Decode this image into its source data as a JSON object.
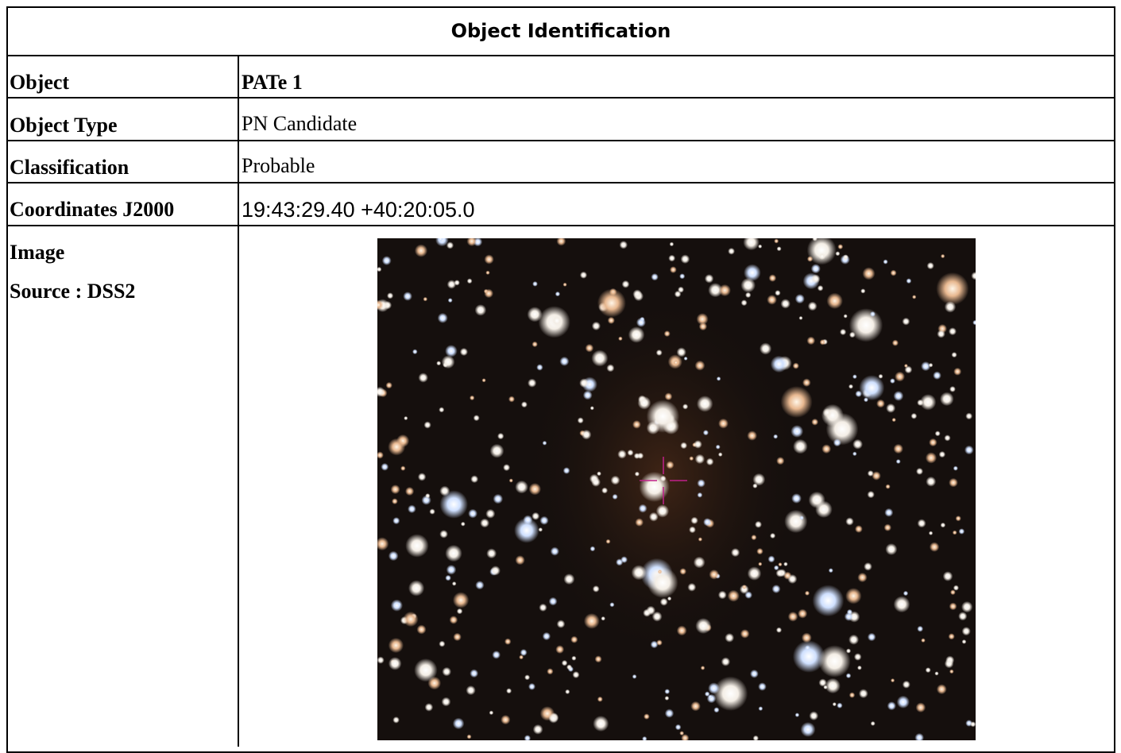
{
  "header": {
    "title": "Object Identification"
  },
  "table": {
    "rows": [
      {
        "label": "Object",
        "value": "PATe 1"
      },
      {
        "label": "Object Type",
        "value": "PN Candidate"
      },
      {
        "label": "Classification",
        "value": "Probable"
      },
      {
        "label": "Coordinates J2000",
        "value": "19:43:29.40 +40:20:05.0"
      }
    ]
  },
  "image": {
    "label": "Image",
    "source": "Source : DSS2"
  }
}
